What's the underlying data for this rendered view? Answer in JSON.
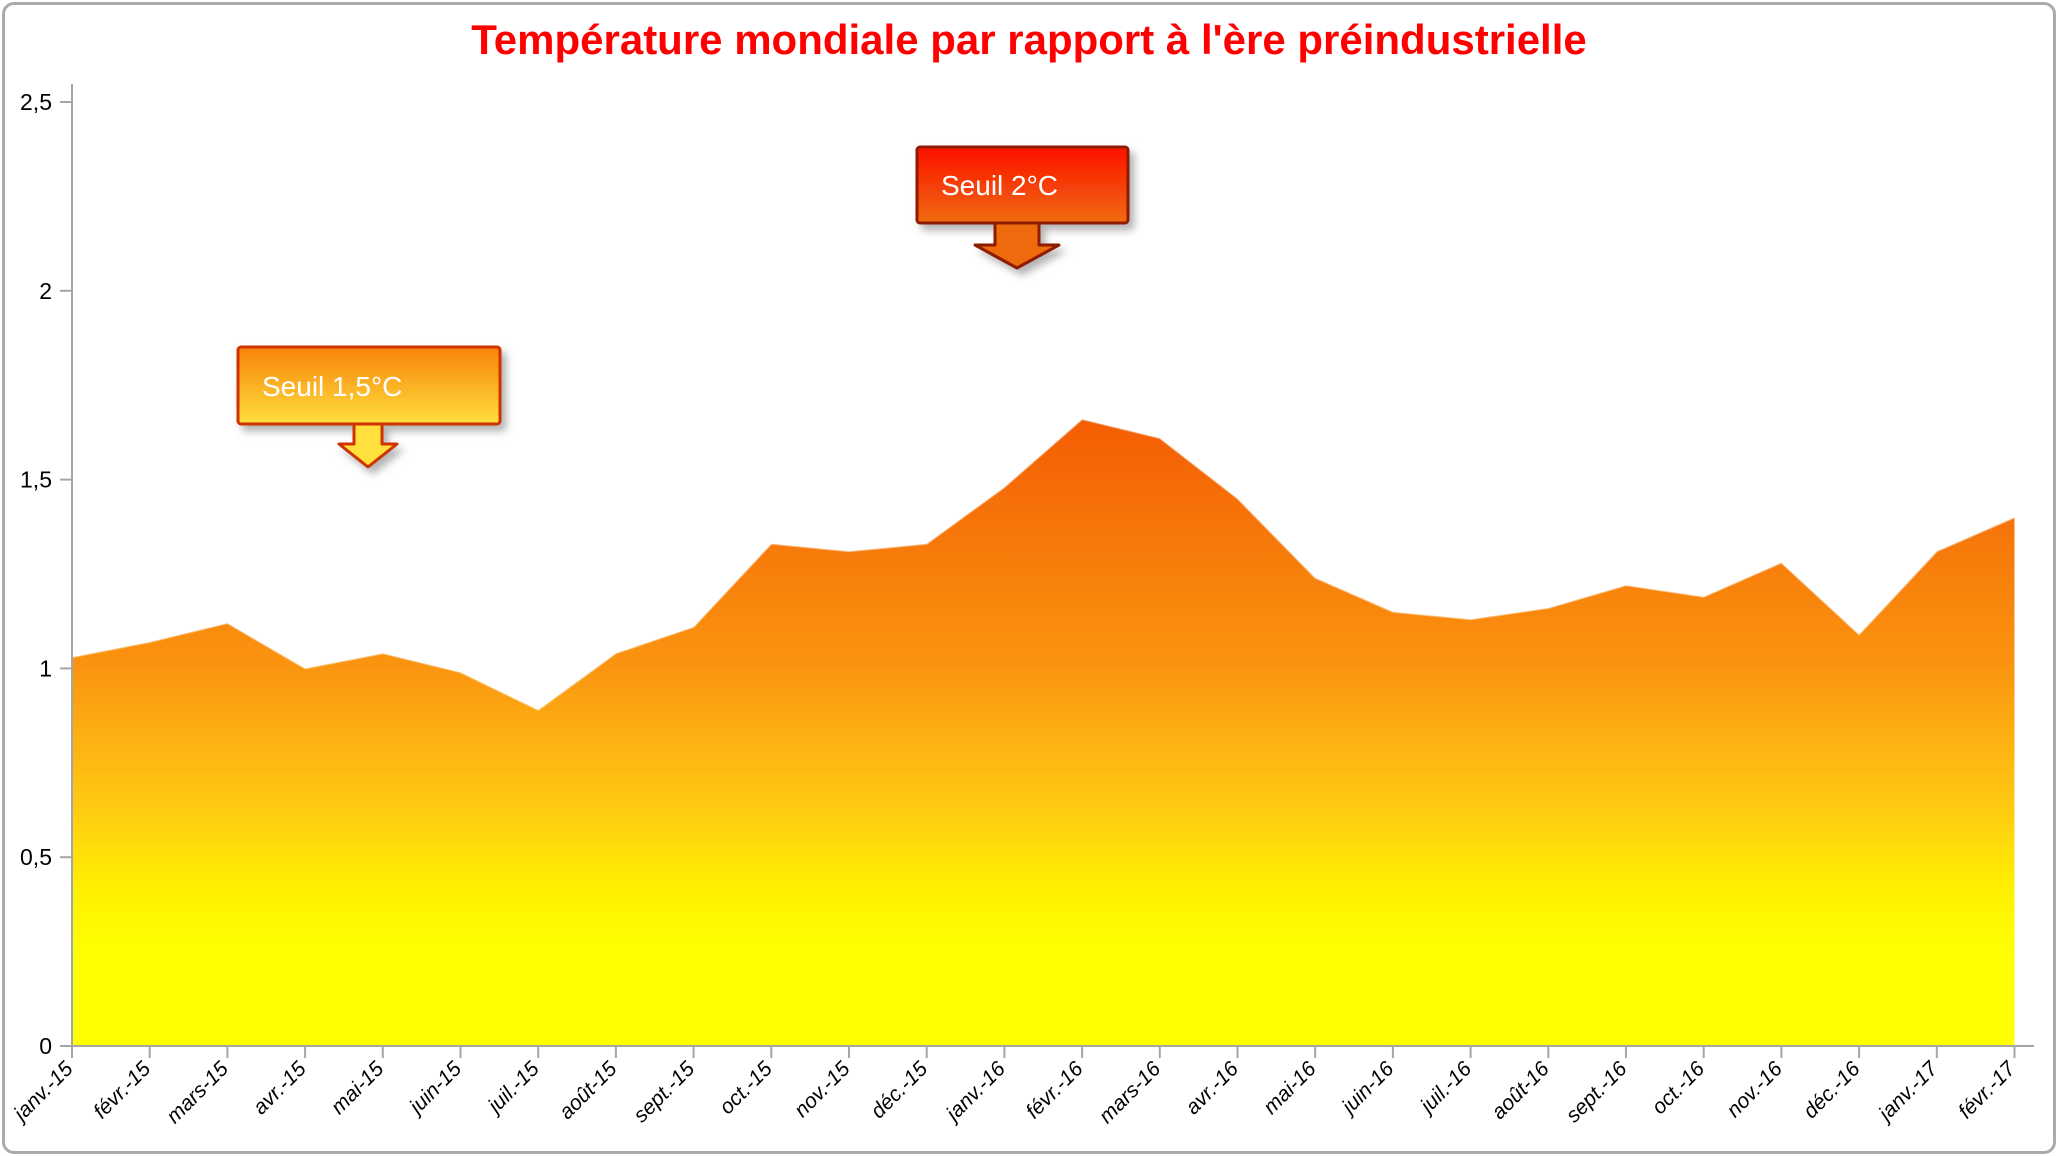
{
  "chart_data": {
    "type": "area",
    "title": "Température mondiale par rapport à l'ère préindustrielle",
    "title_color": "#FF0000",
    "categories": [
      "janv.-15",
      "févr.-15",
      "mars-15",
      "avr.-15",
      "mai-15",
      "juin-15",
      "juil.-15",
      "août-15",
      "sept.-15",
      "oct.-15",
      "nov.-15",
      "déc.-15",
      "janv.-16",
      "févr.-16",
      "mars-16",
      "avr.-16",
      "mai-16",
      "juin-16",
      "juil.-16",
      "août-16",
      "sept.-16",
      "oct.-16",
      "nov.-16",
      "déc.-16",
      "janv.-17",
      "févr.-17"
    ],
    "values": [
      1.03,
      1.07,
      1.12,
      1.0,
      1.04,
      0.99,
      0.89,
      1.04,
      1.11,
      1.33,
      1.31,
      1.33,
      1.48,
      1.66,
      1.61,
      1.45,
      1.24,
      1.15,
      1.13,
      1.16,
      1.22,
      1.19,
      1.28,
      1.09,
      1.31,
      1.4
    ],
    "unit": "°C",
    "ylim": [
      0,
      2.5
    ],
    "y_tick_labels": [
      "0",
      "0,5",
      "1",
      "1,5",
      "2",
      "2,5"
    ],
    "y_tick_values": [
      0,
      0.5,
      1,
      1.5,
      2,
      2.5
    ],
    "xlabel": "",
    "ylabel": "",
    "grid": "off",
    "legend": "none",
    "area_color_top": "#F35B03",
    "area_color_bottom": "#FFFF00",
    "thresholds": [
      {
        "label": "Seuil 2°C",
        "value": 1.98,
        "line_color": "#FE0000"
      },
      {
        "label": "Seuil 1,5°C",
        "value": 1.46,
        "line_color": "#FF6A00"
      }
    ]
  }
}
